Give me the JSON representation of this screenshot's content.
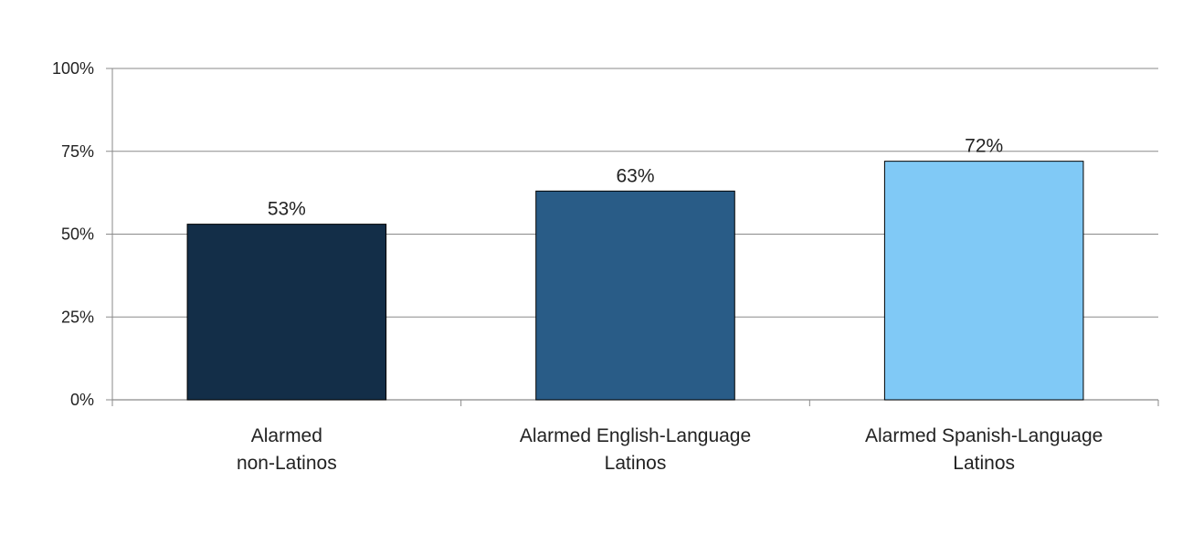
{
  "chart_data": {
    "type": "bar",
    "categories": [
      [
        "Alarmed",
        "non-Latinos"
      ],
      [
        "Alarmed English-Language",
        "Latinos"
      ],
      [
        "Alarmed Spanish-Language",
        "Latinos"
      ]
    ],
    "values": [
      53,
      63,
      72
    ],
    "value_labels": [
      "53%",
      "63%",
      "72%"
    ],
    "bar_colors": [
      "#132e48",
      "#295c87",
      "#80c9f6"
    ],
    "ylim": [
      0,
      100
    ],
    "yticks": [
      0,
      25,
      50,
      75,
      100
    ],
    "ytick_labels": [
      "0%",
      "25%",
      "50%",
      "75%",
      "100%"
    ],
    "grid": true,
    "legend": "none"
  }
}
